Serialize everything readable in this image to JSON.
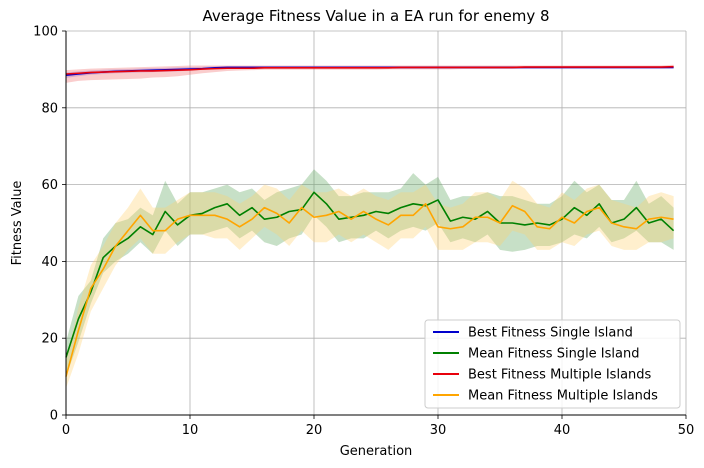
{
  "chart_data": {
    "type": "line",
    "title": "Average Fitness Value in a EA run for enemy 8",
    "xlabel": "Generation",
    "ylabel": "Fitness Value",
    "xlim": [
      0,
      50
    ],
    "ylim": [
      0,
      100
    ],
    "x_ticks": [
      "0",
      "10",
      "20",
      "30",
      "40",
      "50"
    ],
    "y_ticks": [
      "0",
      "20",
      "40",
      "60",
      "80",
      "100"
    ],
    "grid": true,
    "legend_position": "lower-right",
    "x": [
      0,
      1,
      2,
      3,
      4,
      5,
      6,
      7,
      8,
      9,
      10,
      11,
      12,
      13,
      14,
      15,
      16,
      17,
      18,
      19,
      20,
      21,
      22,
      23,
      24,
      25,
      26,
      27,
      28,
      29,
      30,
      31,
      32,
      33,
      34,
      35,
      36,
      37,
      38,
      39,
      40,
      41,
      42,
      43,
      44,
      45,
      46,
      47,
      48,
      49
    ],
    "series": [
      {
        "name": "Best Fitness Single Island",
        "color": "#0000cc",
        "band_color": "#7b68ee",
        "values": [
          88.5,
          88.8,
          89.1,
          89.3,
          89.5,
          89.6,
          89.7,
          89.8,
          89.9,
          90.0,
          90.1,
          90.2,
          90.4,
          90.5,
          90.5,
          90.5,
          90.5,
          90.5,
          90.5,
          90.5,
          90.5,
          90.5,
          90.5,
          90.5,
          90.5,
          90.5,
          90.5,
          90.5,
          90.5,
          90.5,
          90.5,
          90.5,
          90.5,
          90.5,
          90.5,
          90.5,
          90.5,
          90.5,
          90.5,
          90.5,
          90.5,
          90.5,
          90.5,
          90.5,
          90.5,
          90.5,
          90.5,
          90.5,
          90.5,
          90.5
        ],
        "lower": [
          87.8,
          88.2,
          88.6,
          88.8,
          89.0,
          89.1,
          89.2,
          89.3,
          89.4,
          89.5,
          89.7,
          89.9,
          90.1,
          90.2,
          90.2,
          90.2,
          90.2,
          90.2,
          90.2,
          90.2,
          90.2,
          90.2,
          90.2,
          90.2,
          90.2,
          90.2,
          90.2,
          90.2,
          90.2,
          90.2,
          90.2,
          90.2,
          90.2,
          90.2,
          90.2,
          90.2,
          90.2,
          90.2,
          90.2,
          90.2,
          90.2,
          90.2,
          90.2,
          90.2,
          90.2,
          90.2,
          90.2,
          90.2,
          90.2,
          90.2
        ],
        "upper": [
          89.2,
          89.5,
          89.7,
          89.9,
          90.0,
          90.1,
          90.2,
          90.3,
          90.4,
          90.5,
          90.6,
          90.7,
          90.8,
          90.9,
          90.9,
          90.9,
          90.9,
          90.9,
          90.9,
          90.9,
          90.9,
          90.9,
          90.9,
          90.9,
          90.9,
          90.9,
          90.9,
          90.9,
          90.9,
          90.9,
          90.9,
          90.9,
          90.9,
          90.9,
          90.9,
          90.9,
          90.9,
          90.9,
          90.9,
          90.9,
          90.9,
          90.9,
          90.9,
          90.9,
          90.9,
          90.9,
          90.9,
          90.9,
          90.9,
          90.9
        ]
      },
      {
        "name": "Mean Fitness Single Island",
        "color": "#008000",
        "band_color": "#5fa55f",
        "values": [
          15,
          25,
          32,
          41,
          44,
          46,
          49,
          47,
          53,
          49.5,
          52,
          52.5,
          54,
          55,
          52,
          54,
          51,
          51.5,
          53,
          53.5,
          58,
          55,
          51,
          51.5,
          52,
          53,
          52.5,
          54,
          55,
          54.5,
          56,
          50.5,
          51.5,
          51,
          53,
          50,
          50,
          49.5,
          50,
          49.5,
          51,
          54,
          52,
          55,
          50,
          51,
          54,
          50,
          51,
          48
        ],
        "lower": [
          10,
          19,
          29,
          37,
          40,
          42,
          45,
          42,
          48,
          44,
          47,
          47,
          48,
          49,
          46,
          48,
          45,
          44,
          46,
          47,
          52,
          49,
          45,
          46,
          46,
          48,
          46,
          48,
          49,
          48,
          50,
          45,
          46,
          45,
          47,
          43,
          42.5,
          43,
          44,
          44,
          45,
          47,
          46,
          49,
          45,
          46,
          48,
          45,
          45,
          43
        ],
        "upper": [
          19,
          31,
          35,
          46,
          50,
          51,
          54,
          52,
          61,
          55,
          58,
          58,
          59,
          60,
          58,
          59,
          56,
          58,
          59,
          60,
          64,
          61,
          57,
          57,
          58,
          58,
          58,
          59,
          63,
          60,
          62,
          56,
          57,
          57,
          58,
          57,
          57,
          56,
          55,
          55,
          57,
          61,
          58,
          60,
          56,
          56,
          61,
          55,
          57,
          54
        ]
      },
      {
        "name": "Best Fitness Multiple Islands",
        "color": "#e8000b",
        "band_color": "#f07070",
        "values": [
          88.8,
          89.0,
          89.2,
          89.3,
          89.4,
          89.5,
          89.6,
          89.6,
          89.7,
          89.8,
          89.9,
          90.1,
          90.2,
          90.3,
          90.3,
          90.3,
          90.4,
          90.4,
          90.4,
          90.4,
          90.4,
          90.4,
          90.4,
          90.4,
          90.4,
          90.4,
          90.4,
          90.5,
          90.5,
          90.5,
          90.5,
          90.5,
          90.5,
          90.5,
          90.5,
          90.5,
          90.5,
          90.6,
          90.6,
          90.6,
          90.6,
          90.6,
          90.6,
          90.6,
          90.6,
          90.6,
          90.6,
          90.6,
          90.6,
          90.7
        ],
        "lower": [
          86.5,
          87.0,
          87.2,
          87.3,
          87.4,
          87.5,
          87.6,
          87.9,
          88.0,
          88.2,
          88.6,
          89.0,
          89.3,
          89.6,
          89.7,
          89.8,
          89.9,
          89.9,
          89.9,
          89.9,
          89.9,
          89.9,
          89.9,
          89.9,
          89.9,
          89.9,
          90.0,
          90.0,
          90.0,
          90.0,
          90.0,
          90.0,
          90.1,
          90.1,
          90.1,
          90.1,
          90.1,
          90.2,
          90.2,
          90.2,
          90.2,
          90.2,
          90.2,
          90.2,
          90.2,
          90.2,
          90.2,
          90.2,
          90.2,
          90.3
        ],
        "upper": [
          89.8,
          90.0,
          90.2,
          90.3,
          90.4,
          90.5,
          90.6,
          90.7,
          90.8,
          90.9,
          91.0,
          91.0,
          91.0,
          91.0,
          91.0,
          91.0,
          91.0,
          91.0,
          91.0,
          91.0,
          91.0,
          91.0,
          91.0,
          91.0,
          91.0,
          91.0,
          91.0,
          91.0,
          91.0,
          91.0,
          91.0,
          91.0,
          91.0,
          91.0,
          91.0,
          91.0,
          91.0,
          91.0,
          91.0,
          91.0,
          91.0,
          91.0,
          91.0,
          91.0,
          91.0,
          91.0,
          91.0,
          91.0,
          91.0,
          91.2
        ]
      },
      {
        "name": "Mean Fitness Multiple Islands",
        "color": "#ffa500",
        "band_color": "#ffd070",
        "values": [
          10,
          22,
          33,
          38,
          44,
          48,
          52,
          48,
          48,
          51,
          52,
          52,
          52,
          51,
          49,
          51,
          54,
          52.5,
          50,
          54,
          51.5,
          52,
          53,
          51,
          53,
          51,
          49.5,
          52,
          52,
          55,
          49,
          48.5,
          49,
          51.5,
          51.5,
          50,
          54.5,
          53,
          49,
          48.5,
          51.5,
          50,
          53,
          54,
          50,
          49,
          48.5,
          51,
          51.5,
          51
        ],
        "lower": [
          7,
          16,
          27,
          33,
          39,
          43,
          46,
          42,
          42,
          45,
          47,
          47,
          46,
          46,
          43,
          46,
          49,
          47,
          44,
          48,
          45,
          45,
          47,
          45,
          47,
          45,
          43,
          46,
          46,
          49,
          43,
          43,
          43,
          45,
          45,
          44,
          48,
          47,
          43,
          43,
          45,
          44,
          47,
          48,
          44,
          43,
          43,
          45,
          45,
          46
        ],
        "upper": [
          14,
          28,
          39,
          44,
          50,
          54,
          59,
          54,
          54,
          56,
          58,
          58,
          58,
          57,
          55,
          57,
          60,
          59,
          56,
          60,
          58,
          58,
          59,
          57,
          59,
          57,
          56,
          58,
          58,
          60,
          55,
          54,
          55,
          58,
          58,
          56,
          61,
          59,
          55,
          54,
          58,
          56,
          59,
          60,
          56,
          55,
          54,
          57,
          58,
          57
        ]
      }
    ]
  }
}
